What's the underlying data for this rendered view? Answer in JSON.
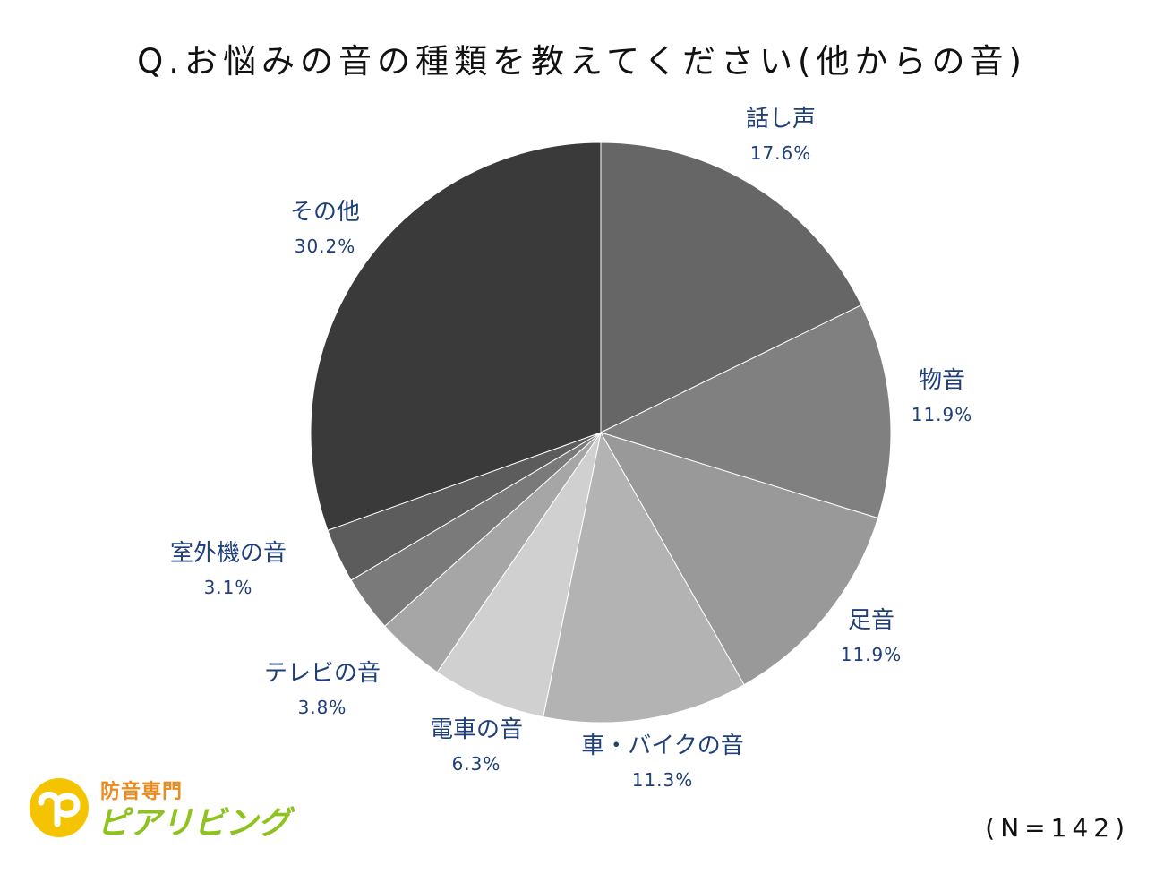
{
  "title": "Q.お悩みの音の種類を教えてください(他からの音)",
  "sample_size": "(N=142)",
  "logo": {
    "subtitle": "防音専門",
    "name": "ピアリビング"
  },
  "colors": {
    "label_text": "#1f3f7a",
    "logo_orange": "#ee8a1c",
    "logo_green": "#8dc21f"
  },
  "chart_data": {
    "type": "pie",
    "title": "Q.お悩みの音の種類を教えてください(他からの音)",
    "slices": [
      {
        "label": "話し声",
        "value": 17.6,
        "value_label": "17.6%",
        "color": "#666666"
      },
      {
        "label": "物音",
        "value": 11.9,
        "value_label": "11.9%",
        "color": "#808080"
      },
      {
        "label": "足音",
        "value": 11.9,
        "value_label": "11.9%",
        "color": "#999999"
      },
      {
        "label": "車・バイクの音",
        "value": 11.3,
        "value_label": "11.3%",
        "color": "#b3b3b3"
      },
      {
        "label": "電車の音",
        "value": 6.3,
        "value_label": "6.3%",
        "color": "#d0d0d0"
      },
      {
        "label": "テレビの音",
        "value": 3.8,
        "value_label": "3.8%",
        "color": "#a6a6a6"
      },
      {
        "label": "室外機の音",
        "value": 3.1,
        "value_label": "3.1%",
        "color": "#7a7a7a"
      },
      {
        "label": "",
        "value": 3.0,
        "value_label": "",
        "color": "#5c5c5c"
      },
      {
        "label": "その他",
        "value": 30.2,
        "value_label": "30.2%",
        "color": "#3a3a3a"
      }
    ],
    "start_angle": "12 o'clock",
    "direction": "clockwise",
    "legend": "none (labels beside slices)"
  }
}
